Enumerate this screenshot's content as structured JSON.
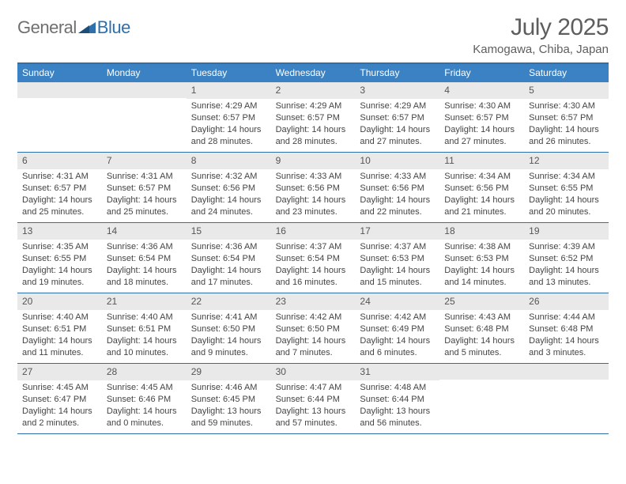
{
  "brand": {
    "name1": "General",
    "name2": "Blue"
  },
  "title": "July 2025",
  "location": "Kamogawa, Chiba, Japan",
  "colors": {
    "header_bg": "#3a82c4",
    "border": "#2f6fac",
    "daynum_bg": "#e9e9e9",
    "text": "#444444",
    "title": "#5e5e5e"
  },
  "weekdays": [
    "Sunday",
    "Monday",
    "Tuesday",
    "Wednesday",
    "Thursday",
    "Friday",
    "Saturday"
  ],
  "weeks": [
    [
      {
        "n": "",
        "sr": "",
        "ss": "",
        "dl": ""
      },
      {
        "n": "",
        "sr": "",
        "ss": "",
        "dl": ""
      },
      {
        "n": "1",
        "sr": "Sunrise: 4:29 AM",
        "ss": "Sunset: 6:57 PM",
        "dl": "Daylight: 14 hours and 28 minutes."
      },
      {
        "n": "2",
        "sr": "Sunrise: 4:29 AM",
        "ss": "Sunset: 6:57 PM",
        "dl": "Daylight: 14 hours and 28 minutes."
      },
      {
        "n": "3",
        "sr": "Sunrise: 4:29 AM",
        "ss": "Sunset: 6:57 PM",
        "dl": "Daylight: 14 hours and 27 minutes."
      },
      {
        "n": "4",
        "sr": "Sunrise: 4:30 AM",
        "ss": "Sunset: 6:57 PM",
        "dl": "Daylight: 14 hours and 27 minutes."
      },
      {
        "n": "5",
        "sr": "Sunrise: 4:30 AM",
        "ss": "Sunset: 6:57 PM",
        "dl": "Daylight: 14 hours and 26 minutes."
      }
    ],
    [
      {
        "n": "6",
        "sr": "Sunrise: 4:31 AM",
        "ss": "Sunset: 6:57 PM",
        "dl": "Daylight: 14 hours and 25 minutes."
      },
      {
        "n": "7",
        "sr": "Sunrise: 4:31 AM",
        "ss": "Sunset: 6:57 PM",
        "dl": "Daylight: 14 hours and 25 minutes."
      },
      {
        "n": "8",
        "sr": "Sunrise: 4:32 AM",
        "ss": "Sunset: 6:56 PM",
        "dl": "Daylight: 14 hours and 24 minutes."
      },
      {
        "n": "9",
        "sr": "Sunrise: 4:33 AM",
        "ss": "Sunset: 6:56 PM",
        "dl": "Daylight: 14 hours and 23 minutes."
      },
      {
        "n": "10",
        "sr": "Sunrise: 4:33 AM",
        "ss": "Sunset: 6:56 PM",
        "dl": "Daylight: 14 hours and 22 minutes."
      },
      {
        "n": "11",
        "sr": "Sunrise: 4:34 AM",
        "ss": "Sunset: 6:56 PM",
        "dl": "Daylight: 14 hours and 21 minutes."
      },
      {
        "n": "12",
        "sr": "Sunrise: 4:34 AM",
        "ss": "Sunset: 6:55 PM",
        "dl": "Daylight: 14 hours and 20 minutes."
      }
    ],
    [
      {
        "n": "13",
        "sr": "Sunrise: 4:35 AM",
        "ss": "Sunset: 6:55 PM",
        "dl": "Daylight: 14 hours and 19 minutes."
      },
      {
        "n": "14",
        "sr": "Sunrise: 4:36 AM",
        "ss": "Sunset: 6:54 PM",
        "dl": "Daylight: 14 hours and 18 minutes."
      },
      {
        "n": "15",
        "sr": "Sunrise: 4:36 AM",
        "ss": "Sunset: 6:54 PM",
        "dl": "Daylight: 14 hours and 17 minutes."
      },
      {
        "n": "16",
        "sr": "Sunrise: 4:37 AM",
        "ss": "Sunset: 6:54 PM",
        "dl": "Daylight: 14 hours and 16 minutes."
      },
      {
        "n": "17",
        "sr": "Sunrise: 4:37 AM",
        "ss": "Sunset: 6:53 PM",
        "dl": "Daylight: 14 hours and 15 minutes."
      },
      {
        "n": "18",
        "sr": "Sunrise: 4:38 AM",
        "ss": "Sunset: 6:53 PM",
        "dl": "Daylight: 14 hours and 14 minutes."
      },
      {
        "n": "19",
        "sr": "Sunrise: 4:39 AM",
        "ss": "Sunset: 6:52 PM",
        "dl": "Daylight: 14 hours and 13 minutes."
      }
    ],
    [
      {
        "n": "20",
        "sr": "Sunrise: 4:40 AM",
        "ss": "Sunset: 6:51 PM",
        "dl": "Daylight: 14 hours and 11 minutes."
      },
      {
        "n": "21",
        "sr": "Sunrise: 4:40 AM",
        "ss": "Sunset: 6:51 PM",
        "dl": "Daylight: 14 hours and 10 minutes."
      },
      {
        "n": "22",
        "sr": "Sunrise: 4:41 AM",
        "ss": "Sunset: 6:50 PM",
        "dl": "Daylight: 14 hours and 9 minutes."
      },
      {
        "n": "23",
        "sr": "Sunrise: 4:42 AM",
        "ss": "Sunset: 6:50 PM",
        "dl": "Daylight: 14 hours and 7 minutes."
      },
      {
        "n": "24",
        "sr": "Sunrise: 4:42 AM",
        "ss": "Sunset: 6:49 PM",
        "dl": "Daylight: 14 hours and 6 minutes."
      },
      {
        "n": "25",
        "sr": "Sunrise: 4:43 AM",
        "ss": "Sunset: 6:48 PM",
        "dl": "Daylight: 14 hours and 5 minutes."
      },
      {
        "n": "26",
        "sr": "Sunrise: 4:44 AM",
        "ss": "Sunset: 6:48 PM",
        "dl": "Daylight: 14 hours and 3 minutes."
      }
    ],
    [
      {
        "n": "27",
        "sr": "Sunrise: 4:45 AM",
        "ss": "Sunset: 6:47 PM",
        "dl": "Daylight: 14 hours and 2 minutes."
      },
      {
        "n": "28",
        "sr": "Sunrise: 4:45 AM",
        "ss": "Sunset: 6:46 PM",
        "dl": "Daylight: 14 hours and 0 minutes."
      },
      {
        "n": "29",
        "sr": "Sunrise: 4:46 AM",
        "ss": "Sunset: 6:45 PM",
        "dl": "Daylight: 13 hours and 59 minutes."
      },
      {
        "n": "30",
        "sr": "Sunrise: 4:47 AM",
        "ss": "Sunset: 6:44 PM",
        "dl": "Daylight: 13 hours and 57 minutes."
      },
      {
        "n": "31",
        "sr": "Sunrise: 4:48 AM",
        "ss": "Sunset: 6:44 PM",
        "dl": "Daylight: 13 hours and 56 minutes."
      },
      {
        "n": "",
        "sr": "",
        "ss": "",
        "dl": ""
      },
      {
        "n": "",
        "sr": "",
        "ss": "",
        "dl": ""
      }
    ]
  ]
}
